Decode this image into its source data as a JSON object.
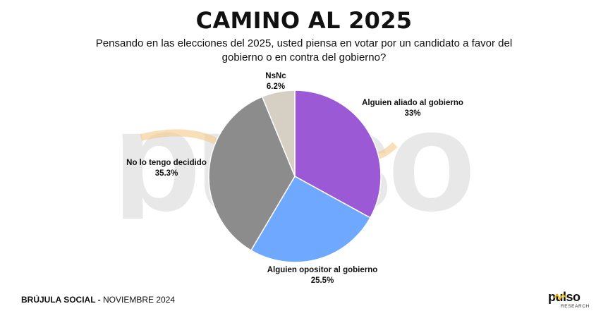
{
  "header": {
    "title": "CAMINO AL 2025",
    "subtitle_line1": "Pensando en las elecciones del 2025, usted piensa en votar por un candidato a favor del",
    "subtitle_line2": "gobierno o en contra del gobierno?"
  },
  "chart_data": {
    "type": "pie",
    "slices": [
      {
        "label": "Alguien aliado al gobierno",
        "value": 33,
        "value_label": "33%",
        "color": "#9b59d6"
      },
      {
        "label": "Alguien opositor al gobierno",
        "value": 25.5,
        "value_label": "25.5%",
        "color": "#6fa8ff"
      },
      {
        "label": "No lo tengo decidido",
        "value": 35.3,
        "value_label": "35.3%",
        "color": "#8c8c8c"
      },
      {
        "label": "NsNc",
        "value": 6.2,
        "value_label": "6.2%",
        "color": "#d6cfc3"
      }
    ],
    "start": "12 o'clock",
    "direction": "clockwise"
  },
  "footer": {
    "brand": "BRÚJULA SOCIAL -",
    "date": "NOVIEMBRE 2024"
  },
  "logo": {
    "word": "pulso",
    "sub": "RESEARCH",
    "accent": "#f5b800"
  },
  "watermark": {
    "text": "pulso",
    "color": "#e8e8e8",
    "accent": "#f3c98a"
  }
}
